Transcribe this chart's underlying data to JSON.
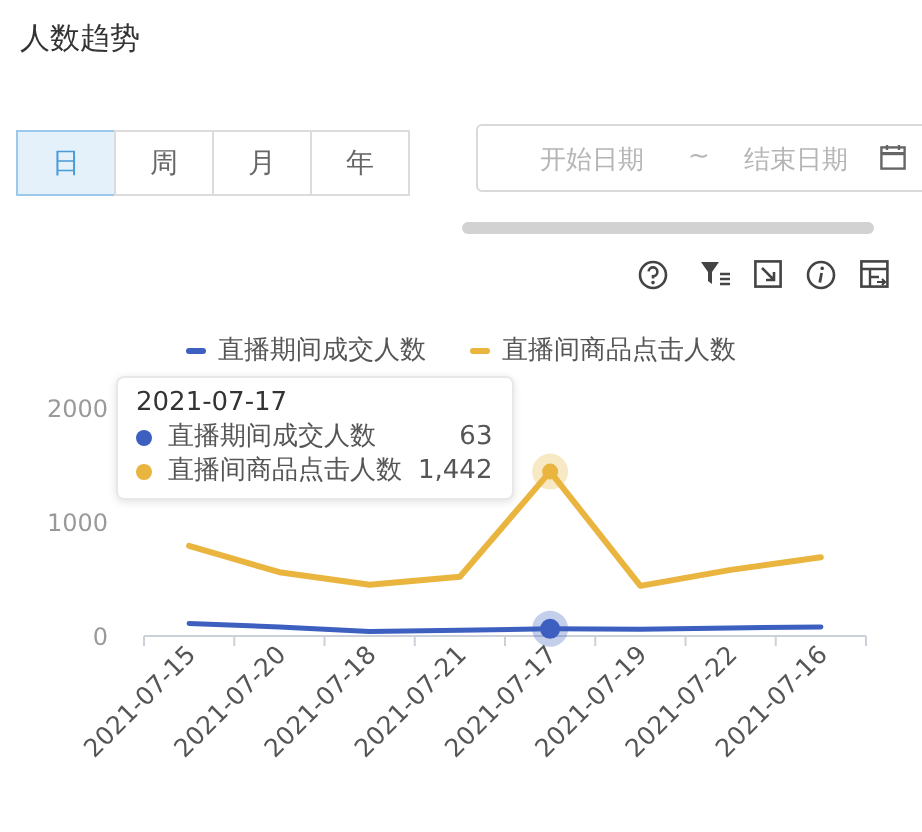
{
  "chart_data": {
    "type": "line",
    "title": "人数趋势",
    "categories": [
      "2021-07-15",
      "2021-07-20",
      "2021-07-18",
      "2021-07-21",
      "2021-07-17",
      "2021-07-19",
      "2021-07-22",
      "2021-07-16"
    ],
    "series": [
      {
        "name": "直播期间成交人数",
        "color": "#3d5fc0",
        "values": [
          110,
          80,
          40,
          50,
          63,
          60,
          70,
          80
        ]
      },
      {
        "name": "直播间商品点击人数",
        "color": "#e9b53f",
        "values": [
          790,
          560,
          450,
          520,
          1442,
          440,
          580,
          690
        ]
      }
    ],
    "ylim": [
      0,
      2000
    ],
    "yticks": [
      0,
      1000,
      2000
    ],
    "legend": "top",
    "marker": "none",
    "line_style": "solid",
    "annotations": [
      "日",
      "周",
      "月",
      "年",
      "开始日期",
      "~",
      "结束日期",
      "2021-07-17",
      "63",
      "1,442"
    ]
  }
}
